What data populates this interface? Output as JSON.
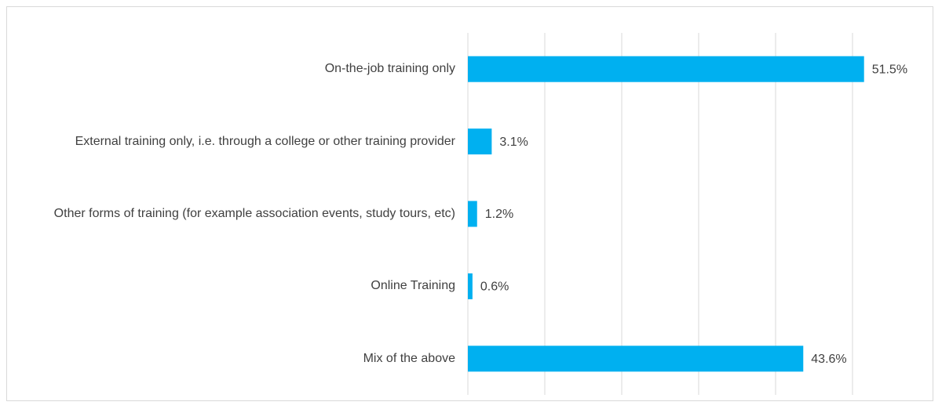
{
  "chart_data": {
    "type": "hbar",
    "categories": [
      "On-the-job training only",
      "External training only, i.e. through a college or other training provider",
      "Other forms of training (for example association events, study tours, etc)",
      "Online Training",
      "Mix of the above"
    ],
    "values": [
      51.5,
      3.1,
      1.2,
      0.6,
      43.6
    ],
    "value_labels": [
      "51.5%",
      "3.1%",
      "1.2%",
      "0.6%",
      "43.6%"
    ],
    "color": "#00b0f0",
    "xlim": [
      0,
      60
    ],
    "xticks": [
      0,
      10,
      20,
      30,
      40,
      50
    ],
    "grid": true
  }
}
